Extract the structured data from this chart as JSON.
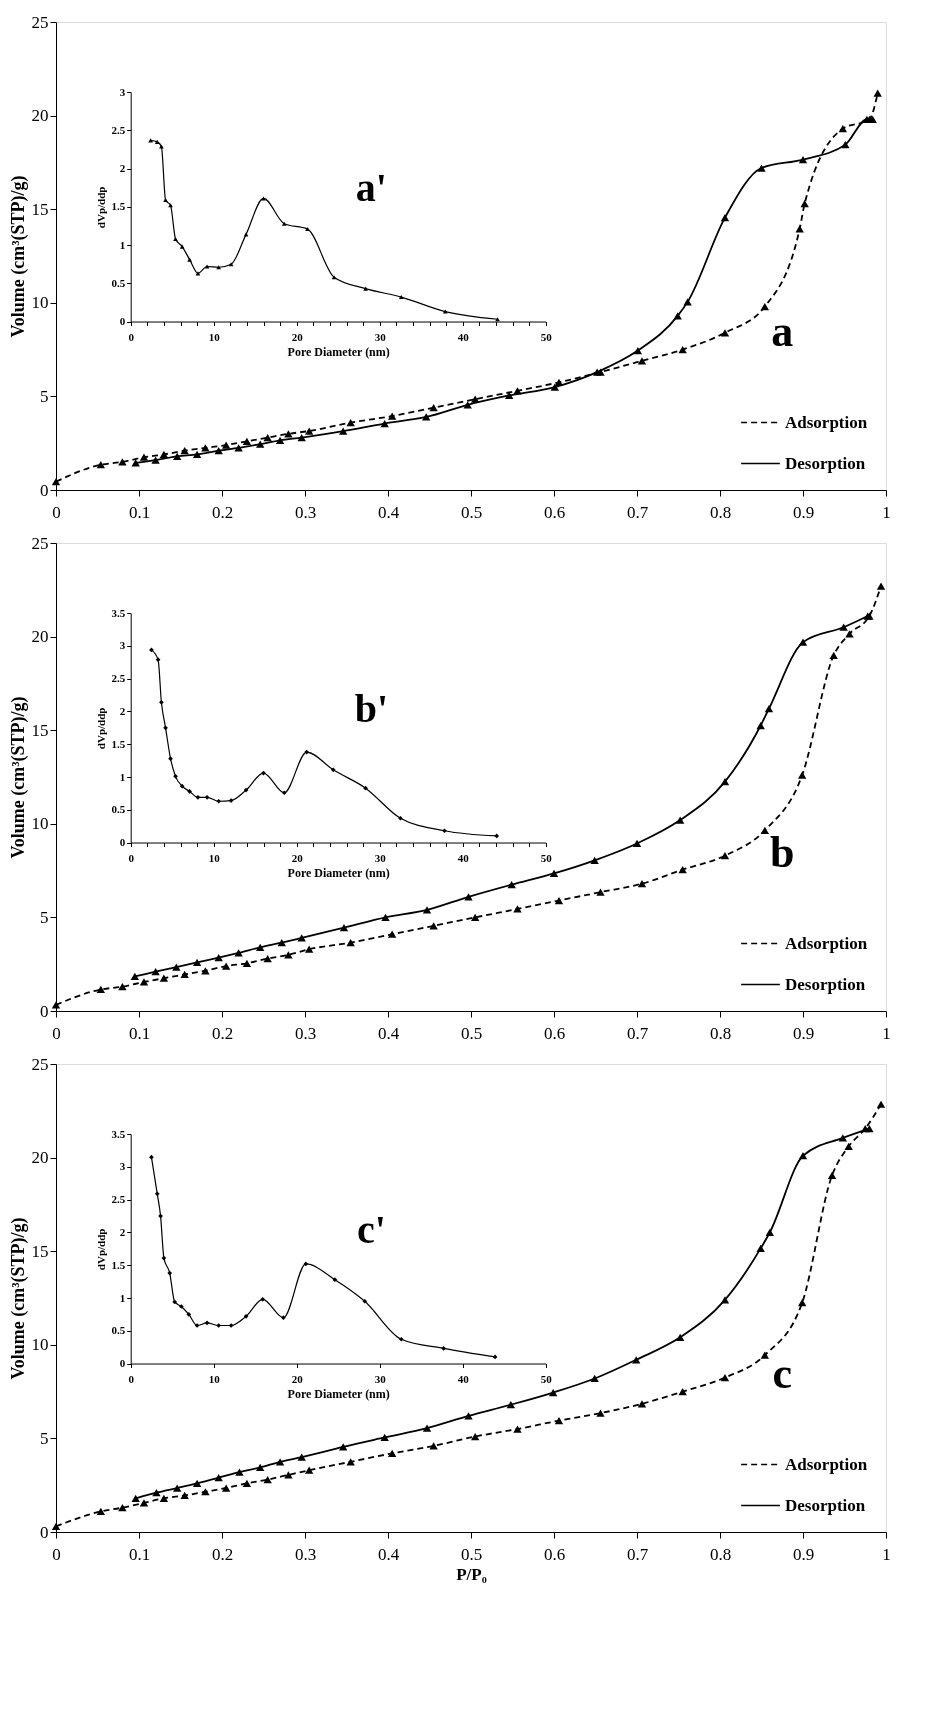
{
  "chart_data": [
    {
      "type": "line",
      "ylabel": "Volume (cm³(STP)/g)",
      "xlim": [
        0,
        1
      ],
      "ylim": [
        0,
        25
      ],
      "xticks": [
        0,
        0.1,
        0.2,
        0.3,
        0.4,
        0.5,
        0.6,
        0.7,
        0.8,
        0.9,
        1
      ],
      "yticks": [
        0,
        5,
        10,
        15,
        20,
        25
      ],
      "legend": "bottom right",
      "marker": "triangle",
      "annotations": [
        "a"
      ],
      "series": [
        {
          "name": "Adsorption",
          "color": "#000000",
          "line_style": "dashed",
          "x": [
            0,
            0.054,
            0.08,
            0.106,
            0.13,
            0.155,
            0.18,
            0.205,
            0.23,
            0.255,
            0.28,
            0.305,
            0.355,
            0.405,
            0.455,
            0.505,
            0.556,
            0.606,
            0.656,
            0.706,
            0.755,
            0.806,
            0.854,
            0.896,
            0.902,
            0.948,
            0.98,
            0.99
          ],
          "values": [
            0.45,
            1.35,
            1.5,
            1.75,
            1.9,
            2.1,
            2.25,
            2.4,
            2.6,
            2.8,
            3.0,
            3.15,
            3.6,
            3.95,
            4.4,
            4.85,
            5.3,
            5.75,
            6.3,
            6.9,
            7.5,
            8.4,
            9.8,
            13.95,
            15.3,
            19.3,
            19.8,
            21.2
          ]
        },
        {
          "name": "Desorption",
          "color": "#000000",
          "line_style": "solid",
          "x": [
            0.096,
            0.12,
            0.146,
            0.17,
            0.196,
            0.22,
            0.246,
            0.27,
            0.296,
            0.346,
            0.396,
            0.446,
            0.496,
            0.546,
            0.601,
            0.652,
            0.701,
            0.749,
            0.761,
            0.806,
            0.85,
            0.9,
            0.951,
            0.977,
            0.984
          ],
          "values": [
            1.45,
            1.6,
            1.8,
            1.9,
            2.1,
            2.25,
            2.45,
            2.65,
            2.8,
            3.15,
            3.55,
            3.9,
            4.55,
            5.05,
            5.5,
            6.3,
            7.45,
            9.3,
            10.05,
            14.55,
            17.2,
            17.65,
            18.45,
            19.8,
            19.8
          ]
        }
      ]
    },
    {
      "type": "line",
      "xlabel": "Pore Diameter (nm)",
      "ylabel": "dVp/ddp",
      "color": "#000000",
      "marker": "triangle",
      "xlim": [
        0,
        50
      ],
      "ylim": [
        0,
        3
      ],
      "xticks": [
        0,
        {
          "value": 2,
          "label": null
        },
        {
          "value": 4,
          "label": null
        },
        {
          "value": 6,
          "label": null
        },
        {
          "value": 8,
          "label": null
        },
        10,
        {
          "value": 12,
          "label": null
        },
        {
          "value": 14,
          "label": null
        },
        {
          "value": 16,
          "label": null
        },
        {
          "value": 18,
          "label": null
        },
        20,
        {
          "value": 22,
          "label": null
        },
        {
          "value": 24,
          "label": null
        },
        {
          "value": 26,
          "label": null
        },
        {
          "value": 28,
          "label": null
        },
        30,
        {
          "value": 32,
          "label": null
        },
        {
          "value": 34,
          "label": null
        },
        {
          "value": 36,
          "label": null
        },
        {
          "value": 38,
          "label": null
        },
        40,
        {
          "value": 42,
          "label": null
        },
        {
          "value": 44,
          "label": null
        },
        {
          "value": 46,
          "label": null
        },
        {
          "value": 48,
          "label": null
        },
        50
      ],
      "yticks": [
        0,
        0.5,
        1,
        1.5,
        2,
        2.5,
        3
      ],
      "annotations": [
        "a'"
      ],
      "x": [
        2.4,
        3.2,
        3.7,
        4.2,
        4.8,
        5.4,
        6.2,
        7.1,
        8.1,
        9.2,
        10.6,
        12.1,
        13.9,
        16.0,
        18.5,
        21.3,
        24.5,
        28.3,
        32.6,
        37.9,
        44.2
      ],
      "values": [
        2.37,
        2.35,
        2.29,
        1.59,
        1.52,
        1.08,
        0.98,
        0.81,
        0.63,
        0.72,
        0.71,
        0.75,
        1.14,
        1.61,
        1.28,
        1.21,
        0.58,
        0.43,
        0.32,
        0.13,
        0.03
      ]
    },
    {
      "type": "line",
      "ylabel": "Volume (cm³(STP)/g)",
      "xlim": [
        0,
        1
      ],
      "ylim": [
        0,
        25
      ],
      "xticks": [
        0,
        0.1,
        0.2,
        0.3,
        0.4,
        0.5,
        0.6,
        0.7,
        0.8,
        0.9,
        1
      ],
      "yticks": [
        0,
        5,
        10,
        15,
        20,
        25
      ],
      "legend": "bottom right",
      "marker": "triangle",
      "annotations": [
        "b"
      ],
      "series": [
        {
          "name": "Adsorption",
          "color": "#000000",
          "line_style": "dashed",
          "x": [
            0,
            0.054,
            0.08,
            0.106,
            0.13,
            0.155,
            0.18,
            0.205,
            0.23,
            0.255,
            0.28,
            0.305,
            0.355,
            0.405,
            0.455,
            0.505,
            0.556,
            0.606,
            0.656,
            0.706,
            0.755,
            0.806,
            0.854,
            0.899,
            0.937,
            0.956,
            0.98,
            0.994
          ],
          "values": [
            0.33,
            1.15,
            1.3,
            1.55,
            1.75,
            1.95,
            2.15,
            2.4,
            2.55,
            2.8,
            3.0,
            3.3,
            3.65,
            4.1,
            4.55,
            5.0,
            5.45,
            5.9,
            6.35,
            6.8,
            7.55,
            8.3,
            9.65,
            12.6,
            19.0,
            20.15,
            21.1,
            22.7
          ]
        },
        {
          "name": "Desorption",
          "color": "#000000",
          "line_style": "solid",
          "x": [
            0.095,
            0.12,
            0.145,
            0.17,
            0.196,
            0.22,
            0.246,
            0.272,
            0.296,
            0.347,
            0.397,
            0.447,
            0.497,
            0.549,
            0.6,
            0.649,
            0.7,
            0.752,
            0.806,
            0.849,
            0.859,
            0.9,
            0.949,
            0.978
          ],
          "values": [
            1.85,
            2.1,
            2.35,
            2.6,
            2.85,
            3.1,
            3.4,
            3.65,
            3.9,
            4.45,
            5.0,
            5.4,
            6.1,
            6.75,
            7.35,
            8.05,
            8.95,
            10.2,
            12.25,
            15.25,
            16.15,
            19.7,
            20.5,
            21.1
          ]
        }
      ]
    },
    {
      "type": "line",
      "xlabel": "Pore Diameter (nm)",
      "ylabel": "dVp/ddp",
      "color": "#000000",
      "marker": "diamond",
      "xlim": [
        0,
        50
      ],
      "ylim": [
        0,
        3.5
      ],
      "xticks": [
        0,
        {
          "value": 2,
          "label": null
        },
        {
          "value": 4,
          "label": null
        },
        {
          "value": 6,
          "label": null
        },
        {
          "value": 8,
          "label": null
        },
        10,
        {
          "value": 12,
          "label": null
        },
        {
          "value": 14,
          "label": null
        },
        {
          "value": 16,
          "label": null
        },
        {
          "value": 18,
          "label": null
        },
        20,
        {
          "value": 22,
          "label": null
        },
        {
          "value": 24,
          "label": null
        },
        {
          "value": 26,
          "label": null
        },
        {
          "value": 28,
          "label": null
        },
        30,
        {
          "value": 32,
          "label": null
        },
        {
          "value": 34,
          "label": null
        },
        {
          "value": 36,
          "label": null
        },
        {
          "value": 38,
          "label": null
        },
        40,
        {
          "value": 42,
          "label": null
        },
        {
          "value": 44,
          "label": null
        },
        {
          "value": 46,
          "label": null
        },
        {
          "value": 48,
          "label": null
        },
        50
      ],
      "yticks": [
        0,
        0.5,
        1,
        1.5,
        2,
        2.5,
        3,
        3.5
      ],
      "annotations": [
        "b'"
      ],
      "x": [
        2.5,
        3.3,
        3.7,
        4.2,
        4.8,
        5.4,
        6.2,
        7.1,
        8.1,
        9.2,
        10.6,
        12.1,
        13.9,
        16.0,
        18.5,
        21.2,
        24.4,
        28.3,
        32.5,
        37.8,
        44.1
      ],
      "values": [
        2.94,
        2.79,
        2.14,
        1.75,
        1.28,
        1.01,
        0.86,
        0.78,
        0.69,
        0.69,
        0.63,
        0.64,
        0.8,
        1.06,
        0.76,
        1.38,
        1.11,
        0.83,
        0.37,
        0.18,
        0.1
      ]
    },
    {
      "type": "line",
      "xlabel": "P/P₀",
      "ylabel": "Volume (cm³(STP)/g)",
      "xlim": [
        0,
        1
      ],
      "ylim": [
        0,
        25
      ],
      "xticks": [
        0,
        0.1,
        0.2,
        0.3,
        0.4,
        0.5,
        0.6,
        0.7,
        0.8,
        0.9,
        1
      ],
      "yticks": [
        0,
        5,
        10,
        15,
        20,
        25
      ],
      "legend": "bottom right",
      "marker": "triangle",
      "annotations": [
        "c"
      ],
      "series": [
        {
          "name": "Adsorption",
          "color": "#000000",
          "line_style": "dashed",
          "x": [
            0,
            0.054,
            0.08,
            0.106,
            0.13,
            0.155,
            0.18,
            0.205,
            0.23,
            0.255,
            0.28,
            0.305,
            0.355,
            0.405,
            0.455,
            0.505,
            0.556,
            0.606,
            0.656,
            0.706,
            0.755,
            0.806,
            0.854,
            0.899,
            0.935,
            0.955,
            0.975,
            0.994
          ],
          "values": [
            0.3,
            1.1,
            1.3,
            1.55,
            1.8,
            1.95,
            2.15,
            2.35,
            2.6,
            2.8,
            3.05,
            3.3,
            3.75,
            4.2,
            4.6,
            5.1,
            5.5,
            5.95,
            6.35,
            6.85,
            7.5,
            8.25,
            9.45,
            12.25,
            19.05,
            20.6,
            21.55,
            22.85
          ]
        },
        {
          "name": "Desorption",
          "color": "#000000",
          "line_style": "solid",
          "x": [
            0.096,
            0.121,
            0.146,
            0.17,
            0.196,
            0.221,
            0.246,
            0.27,
            0.296,
            0.346,
            0.396,
            0.447,
            0.497,
            0.548,
            0.599,
            0.649,
            0.699,
            0.752,
            0.806,
            0.849,
            0.86,
            0.9,
            0.948,
            0.98
          ],
          "values": [
            1.8,
            2.1,
            2.35,
            2.6,
            2.9,
            3.2,
            3.45,
            3.75,
            4.0,
            4.55,
            5.05,
            5.55,
            6.2,
            6.8,
            7.45,
            8.2,
            9.2,
            10.4,
            12.4,
            15.15,
            16.0,
            20.1,
            21.05,
            21.55
          ]
        }
      ]
    },
    {
      "type": "line",
      "xlabel": "Pore Diameter (nm)",
      "ylabel": "dVp/ddp",
      "color": "#000000",
      "marker": "diamond",
      "xlim": [
        0,
        50
      ],
      "ylim": [
        0,
        3.5
      ],
      "xticks": [
        0,
        10,
        20,
        30,
        40,
        50
      ],
      "yticks": [
        0,
        0.5,
        1,
        1.5,
        2,
        2.5,
        3,
        3.5
      ],
      "annotations": [
        "c'"
      ],
      "x": [
        2.5,
        3.2,
        3.6,
        4.0,
        4.7,
        5.3,
        6.1,
        7.0,
        8.0,
        9.2,
        10.6,
        12.1,
        13.9,
        15.9,
        18.4,
        21.1,
        24.6,
        28.2,
        32.6,
        37.7,
        43.9
      ],
      "values": [
        3.15,
        2.59,
        2.25,
        1.61,
        1.38,
        0.94,
        0.87,
        0.75,
        0.58,
        0.62,
        0.58,
        0.58,
        0.72,
        0.98,
        0.7,
        1.52,
        1.28,
        0.95,
        0.37,
        0.23,
        0.1
      ]
    }
  ]
}
